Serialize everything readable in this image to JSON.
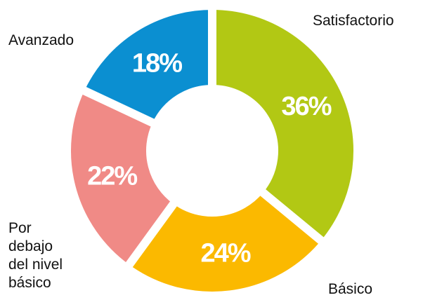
{
  "chart_data": {
    "type": "donut",
    "categories": [
      "Satisfactorio",
      "Básico",
      "Por debajo del nivel básico",
      "Avanzado"
    ],
    "values": [
      36,
      24,
      22,
      18
    ],
    "value_labels": [
      "36%",
      "24%",
      "22%",
      "18%"
    ],
    "colors": [
      "#b2c814",
      "#fbb900",
      "#f08a86",
      "#0b8fd1"
    ]
  }
}
